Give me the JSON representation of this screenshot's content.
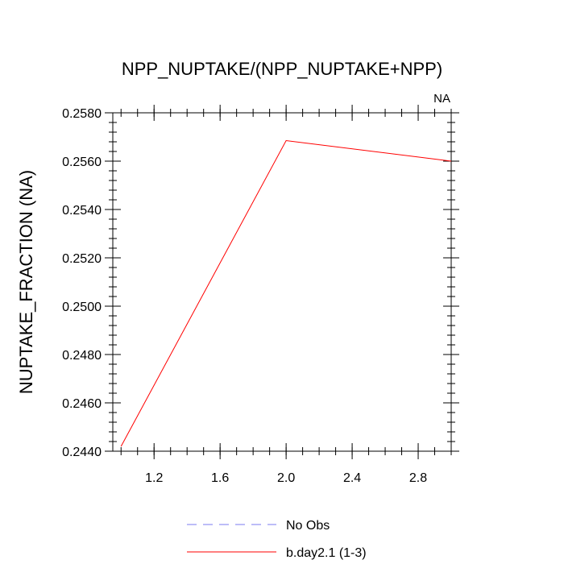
{
  "chart_data": {
    "type": "line",
    "title": "NPP_NUPTAKE/(NPP_NUPTAKE+NPP)",
    "ylabel": "NUPTAKE_FRACTION  (NA)",
    "xlabel": "",
    "corner_label": "NA",
    "xlim": [
      0.95,
      3.0
    ],
    "ylim": [
      0.244,
      0.258
    ],
    "x_major_ticks": [
      1.2,
      1.6,
      2.0,
      2.4,
      2.8
    ],
    "x_tick_labels": [
      "1.2",
      "1.6",
      "2.0",
      "2.4",
      "2.8"
    ],
    "y_major_ticks": [
      0.244,
      0.246,
      0.248,
      0.25,
      0.252,
      0.254,
      0.256,
      0.258
    ],
    "y_tick_labels": [
      "0.2440",
      "0.2460",
      "0.2480",
      "0.2500",
      "0.2520",
      "0.2540",
      "0.2560",
      "0.2580"
    ],
    "grid": false,
    "legend_position": "bottom",
    "series": [
      {
        "name": "No Obs",
        "color": "#7b7bf0",
        "dash": true,
        "x": [],
        "y": []
      },
      {
        "name": "b.day2.1 (1-3)",
        "color": "#ff0000",
        "dash": false,
        "x": [
          1.0,
          2.0,
          3.0
        ],
        "y": [
          0.2442,
          0.25685,
          0.256
        ]
      }
    ]
  }
}
